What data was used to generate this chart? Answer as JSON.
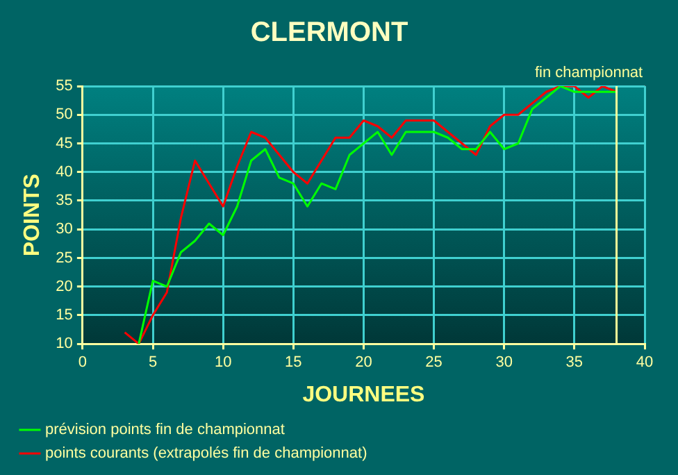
{
  "chart_data": {
    "type": "line",
    "title": "CLERMONT",
    "xlabel": "JOURNEES",
    "ylabel": "POINTS",
    "xlim": [
      0,
      40
    ],
    "xticks": [
      0,
      5,
      10,
      15,
      20,
      25,
      30,
      35,
      40
    ],
    "ylim": [
      10,
      55
    ],
    "yticks": [
      10,
      15,
      20,
      25,
      30,
      35,
      40,
      45,
      50,
      55
    ],
    "grid": true,
    "legend": "bottom left",
    "marker": "none",
    "line_style": "solid",
    "ref_lines": [
      {
        "axis": "x",
        "value": 38,
        "label": "fin championnat",
        "color": "#ffff99"
      }
    ],
    "series": [
      {
        "name": "prévision points fin de championnat",
        "color": "#00ff00",
        "x": [
          4,
          5,
          6,
          7,
          8,
          9,
          10,
          11,
          12,
          13,
          14,
          15,
          16,
          17,
          18,
          19,
          20,
          21,
          22,
          23,
          24,
          25,
          26,
          27,
          28,
          29,
          30,
          31,
          32,
          33,
          34,
          35,
          36,
          37,
          38
        ],
        "values": [
          10,
          21,
          20,
          26,
          28,
          31,
          29,
          34,
          42,
          44,
          39,
          38,
          34,
          38,
          37,
          43,
          45,
          47,
          43,
          47,
          47,
          47,
          46,
          44,
          44,
          47,
          44,
          45,
          51,
          53,
          55,
          54,
          54,
          54,
          54
        ]
      },
      {
        "name": "points courants (extrapolés fin de championnat)",
        "color": "#ff0000",
        "x": [
          3,
          4,
          5,
          6,
          7,
          8,
          9,
          10,
          11,
          12,
          13,
          14,
          15,
          16,
          17,
          18,
          19,
          20,
          21,
          22,
          23,
          24,
          25,
          26,
          27,
          28,
          29,
          30,
          31,
          32,
          33,
          34,
          35,
          36,
          37,
          38
        ],
        "values": [
          12,
          10,
          15,
          19,
          32,
          42,
          38,
          34,
          41,
          47,
          46,
          43,
          40,
          38,
          42,
          46,
          46,
          49,
          48,
          46,
          49,
          49,
          49,
          47,
          45,
          43,
          48,
          50,
          50,
          52,
          54,
          55,
          55,
          53,
          55,
          54
        ]
      }
    ]
  }
}
